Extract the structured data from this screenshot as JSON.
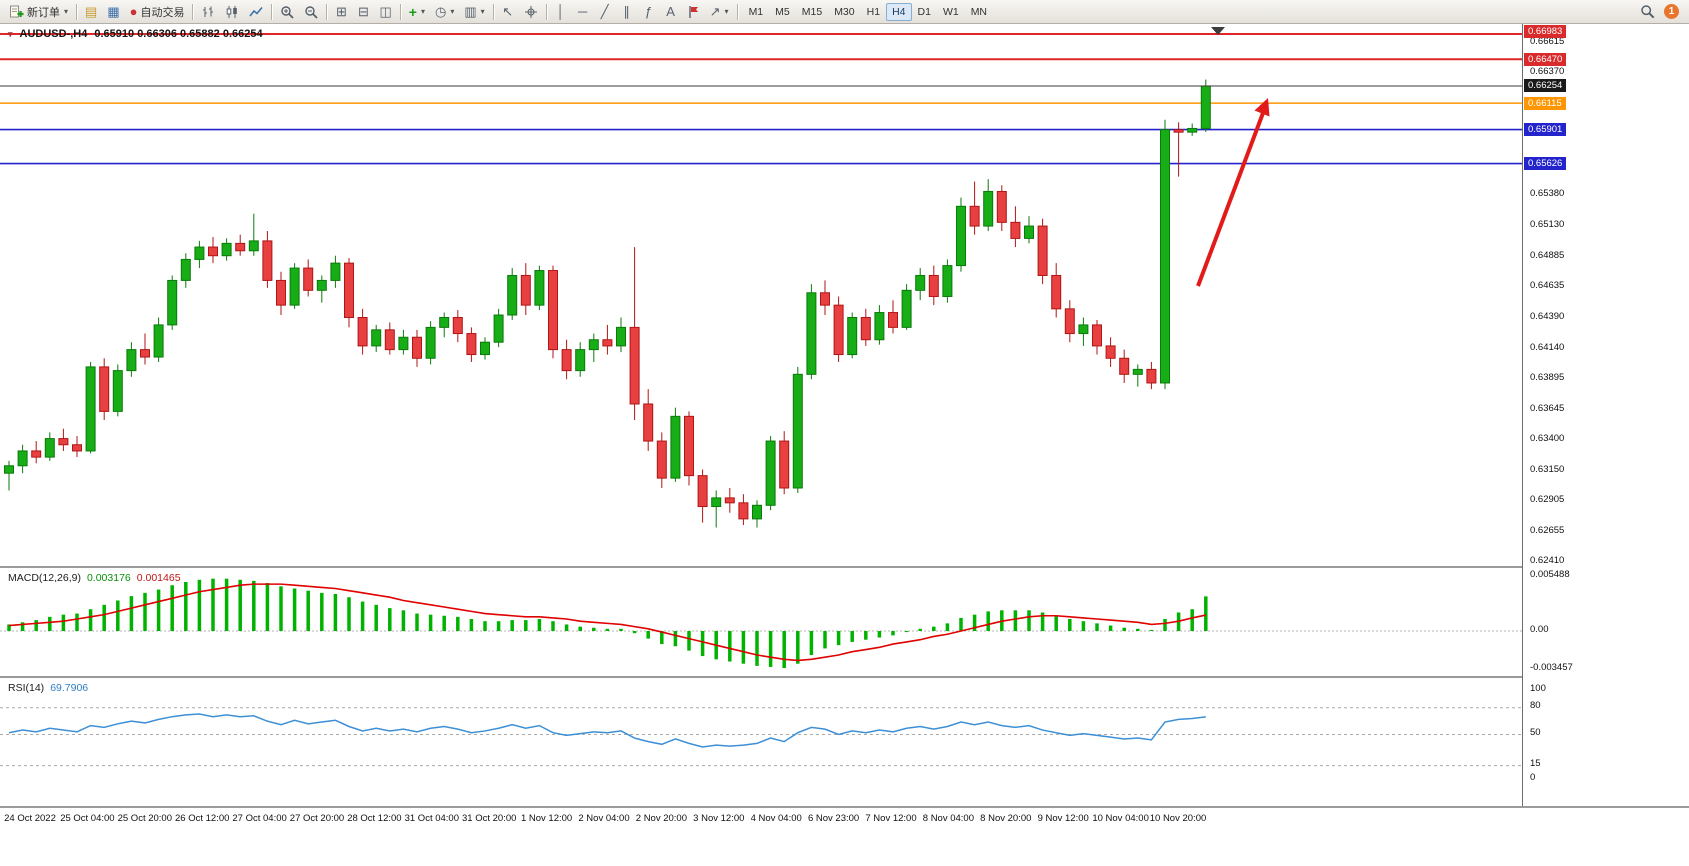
{
  "toolbar": {
    "new_order_label": "新订单",
    "autotrading_label": "自动交易",
    "timeframes": [
      "M1",
      "M5",
      "M15",
      "M30",
      "H1",
      "H4",
      "D1",
      "W1",
      "MN"
    ],
    "active_timeframe": "H4",
    "notification_count": "1"
  },
  "chart": {
    "symbol_tf": "AUDUSD-,H4",
    "ohlc": "0.65910 0.66306 0.65882 0.66254"
  },
  "macd": {
    "label": "MACD(12,26,9)",
    "value_main": "0.003176",
    "value_signal": "0.001465"
  },
  "rsi": {
    "label": "RSI(14)",
    "value": "69.7906"
  },
  "price_axis": {
    "main_labels": [
      "0.66615",
      "0.66370",
      "0.65380",
      "0.65130",
      "0.64885",
      "0.64635",
      "0.64390",
      "0.64140",
      "0.63895",
      "0.63645",
      "0.63400",
      "0.63150",
      "0.62905",
      "0.62655",
      "0.62410"
    ],
    "tags": [
      {
        "label": "0.66983",
        "price": 0.66983,
        "color": "#d92b2b"
      },
      {
        "label": "0.66470",
        "price": 0.6647,
        "color": "#d92b2b"
      },
      {
        "label": "0.66254",
        "price": 0.66254,
        "color": "#1a1a1a"
      },
      {
        "label": "0.66115",
        "price": 0.66115,
        "color": "#ff9500"
      },
      {
        "label": "0.65901",
        "price": 0.65901,
        "color": "#2424cc"
      },
      {
        "label": "0.65626",
        "price": 0.65626,
        "color": "#2424cc"
      }
    ]
  },
  "time_axis": [
    "24 Oct 2022",
    "25 Oct 04:00",
    "25 Oct 20:00",
    "26 Oct 12:00",
    "27 Oct 04:00",
    "27 Oct 20:00",
    "28 Oct 12:00",
    "31 Oct 04:00",
    "31 Oct 20:00",
    "1 Nov 12:00",
    "2 Nov 04:00",
    "2 Nov 20:00",
    "3 Nov 12:00",
    "4 Nov 04:00",
    "6 Nov 23:00",
    "7 Nov 12:00",
    "8 Nov 04:00",
    "8 Nov 20:00",
    "9 Nov 12:00",
    "10 Nov 04:00",
    "10 Nov 20:00"
  ],
  "chart_data": [
    {
      "type": "candlestick",
      "symbol": "AUDUSD-",
      "timeframe": "H4",
      "current_bar": {
        "open": 0.6591,
        "high": 0.66306,
        "low": 0.65882,
        "close": 0.66254
      },
      "ylim": [
        0.62393,
        0.66723
      ],
      "up_color": "#16ad16",
      "up_edge": "#0b7a0b",
      "down_color": "#e84040",
      "down_edge": "#b01515",
      "arrow_color": "#e11a1a",
      "hlines": [
        {
          "label": "0.66983",
          "price": 0.66983,
          "color": "#e02626",
          "width": 2
        },
        {
          "label": "0.66470",
          "price": 0.6647,
          "color": "#e02626",
          "width": 2
        },
        {
          "label": "0.66115",
          "price": 0.66115,
          "color": "#ff9500",
          "width": 1.6
        },
        {
          "label": "0.65901",
          "price": 0.65901,
          "color": "#2424cc",
          "width": 1.6
        },
        {
          "label": "0.65626",
          "price": 0.65626,
          "color": "#2424cc",
          "width": 1.6
        },
        {
          "label": "0.66254",
          "price": 0.66254,
          "color": "#3a3a3a",
          "width": 1,
          "on_top": true
        }
      ],
      "candles": [
        [
          0.6312,
          0.6322,
          0.6298,
          0.6318
        ],
        [
          0.6318,
          0.6335,
          0.6312,
          0.633
        ],
        [
          0.633,
          0.6338,
          0.632,
          0.6325
        ],
        [
          0.6325,
          0.6345,
          0.6322,
          0.634
        ],
        [
          0.634,
          0.6348,
          0.633,
          0.6335
        ],
        [
          0.6335,
          0.6342,
          0.6325,
          0.633
        ],
        [
          0.633,
          0.6402,
          0.6328,
          0.6398
        ],
        [
          0.6398,
          0.6405,
          0.6355,
          0.6362
        ],
        [
          0.6362,
          0.64,
          0.6358,
          0.6395
        ],
        [
          0.6395,
          0.6418,
          0.639,
          0.6412
        ],
        [
          0.6412,
          0.6425,
          0.64,
          0.6406
        ],
        [
          0.6406,
          0.6438,
          0.6402,
          0.6432
        ],
        [
          0.6432,
          0.6472,
          0.6428,
          0.6468
        ],
        [
          0.6468,
          0.649,
          0.6462,
          0.6485
        ],
        [
          0.6485,
          0.65,
          0.6478,
          0.6495
        ],
        [
          0.6495,
          0.6503,
          0.6482,
          0.6488
        ],
        [
          0.6488,
          0.6502,
          0.6484,
          0.6498
        ],
        [
          0.6498,
          0.6505,
          0.6488,
          0.6492
        ],
        [
          0.6492,
          0.6522,
          0.6488,
          0.65
        ],
        [
          0.65,
          0.6508,
          0.6462,
          0.6468
        ],
        [
          0.6468,
          0.6475,
          0.644,
          0.6448
        ],
        [
          0.6448,
          0.6482,
          0.6445,
          0.6478
        ],
        [
          0.6478,
          0.6485,
          0.6455,
          0.646
        ],
        [
          0.646,
          0.6472,
          0.645,
          0.6468
        ],
        [
          0.6468,
          0.6488,
          0.6462,
          0.6482
        ],
        [
          0.6482,
          0.6486,
          0.643,
          0.6438
        ],
        [
          0.6438,
          0.6445,
          0.6408,
          0.6415
        ],
        [
          0.6415,
          0.6432,
          0.641,
          0.6428
        ],
        [
          0.6428,
          0.6434,
          0.6408,
          0.6412
        ],
        [
          0.6412,
          0.6428,
          0.6408,
          0.6422
        ],
        [
          0.6422,
          0.6428,
          0.6398,
          0.6405
        ],
        [
          0.6405,
          0.6435,
          0.64,
          0.643
        ],
        [
          0.643,
          0.6442,
          0.6422,
          0.6438
        ],
        [
          0.6438,
          0.6444,
          0.6418,
          0.6425
        ],
        [
          0.6425,
          0.643,
          0.6402,
          0.6408
        ],
        [
          0.6408,
          0.6422,
          0.6404,
          0.6418
        ],
        [
          0.6418,
          0.6445,
          0.6414,
          0.644
        ],
        [
          0.644,
          0.6478,
          0.6436,
          0.6472
        ],
        [
          0.6472,
          0.6482,
          0.644,
          0.6448
        ],
        [
          0.6448,
          0.648,
          0.6444,
          0.6476
        ],
        [
          0.6476,
          0.648,
          0.6405,
          0.6412
        ],
        [
          0.6412,
          0.642,
          0.6388,
          0.6395
        ],
        [
          0.6395,
          0.6418,
          0.639,
          0.6412
        ],
        [
          0.6412,
          0.6425,
          0.6402,
          0.642
        ],
        [
          0.642,
          0.6432,
          0.6408,
          0.6415
        ],
        [
          0.6415,
          0.6438,
          0.641,
          0.643
        ],
        [
          0.643,
          0.6495,
          0.6355,
          0.6368
        ],
        [
          0.6368,
          0.638,
          0.633,
          0.6338
        ],
        [
          0.6338,
          0.6345,
          0.63,
          0.6308
        ],
        [
          0.6308,
          0.6365,
          0.6305,
          0.6358
        ],
        [
          0.6358,
          0.6362,
          0.6302,
          0.631
        ],
        [
          0.631,
          0.6315,
          0.6272,
          0.6285
        ],
        [
          0.6285,
          0.6298,
          0.6268,
          0.6292
        ],
        [
          0.6292,
          0.63,
          0.628,
          0.6288
        ],
        [
          0.6288,
          0.6295,
          0.627,
          0.6275
        ],
        [
          0.6275,
          0.629,
          0.6268,
          0.6286
        ],
        [
          0.6286,
          0.6342,
          0.6282,
          0.6338
        ],
        [
          0.6338,
          0.6346,
          0.6295,
          0.63
        ],
        [
          0.63,
          0.6398,
          0.6296,
          0.6392
        ],
        [
          0.6392,
          0.6465,
          0.6388,
          0.6458
        ],
        [
          0.6458,
          0.6468,
          0.644,
          0.6448
        ],
        [
          0.6448,
          0.6455,
          0.6402,
          0.6408
        ],
        [
          0.6408,
          0.6442,
          0.6405,
          0.6438
        ],
        [
          0.6438,
          0.6445,
          0.6415,
          0.642
        ],
        [
          0.642,
          0.6448,
          0.6416,
          0.6442
        ],
        [
          0.6442,
          0.6452,
          0.6425,
          0.643
        ],
        [
          0.643,
          0.6465,
          0.6428,
          0.646
        ],
        [
          0.646,
          0.6478,
          0.6452,
          0.6472
        ],
        [
          0.6472,
          0.648,
          0.6448,
          0.6455
        ],
        [
          0.6455,
          0.6485,
          0.645,
          0.648
        ],
        [
          0.648,
          0.6535,
          0.6475,
          0.6528
        ],
        [
          0.6528,
          0.6548,
          0.6505,
          0.6512
        ],
        [
          0.6512,
          0.655,
          0.6508,
          0.654
        ],
        [
          0.654,
          0.6545,
          0.6508,
          0.6515
        ],
        [
          0.6515,
          0.6528,
          0.6495,
          0.6502
        ],
        [
          0.6502,
          0.652,
          0.6498,
          0.6512
        ],
        [
          0.6512,
          0.6518,
          0.6465,
          0.6472
        ],
        [
          0.6472,
          0.6482,
          0.6438,
          0.6445
        ],
        [
          0.6445,
          0.6452,
          0.6418,
          0.6425
        ],
        [
          0.6425,
          0.6438,
          0.6415,
          0.6432
        ],
        [
          0.6432,
          0.6436,
          0.6408,
          0.6415
        ],
        [
          0.6415,
          0.6422,
          0.6398,
          0.6405
        ],
        [
          0.6405,
          0.6412,
          0.6385,
          0.6392
        ],
        [
          0.6392,
          0.64,
          0.6382,
          0.6396
        ],
        [
          0.6396,
          0.6402,
          0.638,
          0.6385
        ],
        [
          0.6385,
          0.6598,
          0.638,
          0.659
        ],
        [
          0.659,
          0.6596,
          0.6552,
          0.6588
        ],
        [
          0.6588,
          0.6595,
          0.6585,
          0.6591
        ],
        [
          0.6591,
          0.66306,
          0.65882,
          0.66254
        ]
      ]
    },
    {
      "type": "bar",
      "name": "MACD(12,26,9)",
      "color": "#00b300",
      "signal_color": "#e00000",
      "axis_labels": [
        "0.005488",
        "0.00",
        "-0.003457"
      ],
      "values": [
        0.0006,
        0.0008,
        0.001,
        0.0013,
        0.0015,
        0.0016,
        0.002,
        0.0024,
        0.0028,
        0.0032,
        0.0035,
        0.0038,
        0.0042,
        0.0045,
        0.0047,
        0.0048,
        0.0048,
        0.0047,
        0.0046,
        0.0044,
        0.0041,
        0.0039,
        0.0037,
        0.0035,
        0.0034,
        0.0031,
        0.0027,
        0.0024,
        0.0021,
        0.0019,
        0.0016,
        0.0015,
        0.0014,
        0.0013,
        0.0011,
        0.0009,
        0.0009,
        0.001,
        0.001,
        0.0011,
        0.0009,
        0.0006,
        0.0004,
        0.0003,
        0.0002,
        0.0002,
        -0.0002,
        -0.0007,
        -0.0012,
        -0.0014,
        -0.0018,
        -0.0023,
        -0.0026,
        -0.0028,
        -0.003,
        -0.0032,
        -0.0033,
        -0.0034,
        -0.003,
        -0.0022,
        -0.0016,
        -0.0013,
        -0.001,
        -0.0008,
        -0.0006,
        -0.0004,
        -0.0001,
        0.0002,
        0.0004,
        0.0007,
        0.0012,
        0.0015,
        0.0018,
        0.0019,
        0.0019,
        0.0019,
        0.0017,
        0.0014,
        0.0011,
        0.0009,
        0.0007,
        0.0005,
        0.0003,
        0.0002,
        0.0001,
        0.0011,
        0.0017,
        0.002,
        0.003176
      ],
      "signal": [
        0.0005,
        0.0006,
        0.0007,
        0.0008,
        0.0009,
        0.0011,
        0.0013,
        0.0015,
        0.0018,
        0.0021,
        0.0024,
        0.0027,
        0.003,
        0.0033,
        0.0036,
        0.0038,
        0.004,
        0.0042,
        0.0043,
        0.0043,
        0.0043,
        0.0042,
        0.0041,
        0.004,
        0.0039,
        0.0037,
        0.0035,
        0.0033,
        0.0031,
        0.0028,
        0.0026,
        0.0024,
        0.0022,
        0.002,
        0.0018,
        0.0016,
        0.0015,
        0.0014,
        0.0013,
        0.0013,
        0.0012,
        0.0011,
        0.0009,
        0.0008,
        0.0007,
        0.0006,
        0.0004,
        0.0002,
        -0.0001,
        -0.0004,
        -0.0007,
        -0.001,
        -0.0013,
        -0.0016,
        -0.0019,
        -0.0022,
        -0.0024,
        -0.0026,
        -0.0027,
        -0.0026,
        -0.0024,
        -0.0022,
        -0.0019,
        -0.0017,
        -0.0015,
        -0.0012,
        -0.001,
        -0.0008,
        -0.0005,
        -0.0003,
        0.0,
        0.0003,
        0.0006,
        0.0009,
        0.0011,
        0.0013,
        0.0014,
        0.0014,
        0.0013,
        0.0012,
        0.0011,
        0.001,
        0.0009,
        0.0008,
        0.0006,
        0.0007,
        0.0009,
        0.0012,
        0.001465
      ]
    },
    {
      "type": "line",
      "name": "RSI(14)",
      "color": "#3d8fd6",
      "ylim": [
        0,
        100
      ],
      "levels": [
        80,
        50,
        15
      ],
      "axis_labels": [
        "100",
        "80",
        "50",
        "15",
        "0"
      ],
      "values": [
        52,
        55,
        53,
        57,
        55,
        53,
        60,
        58,
        62,
        65,
        63,
        67,
        70,
        72,
        73,
        70,
        72,
        70,
        71,
        65,
        61,
        66,
        62,
        64,
        66,
        59,
        54,
        57,
        54,
        56,
        53,
        57,
        59,
        56,
        52,
        54,
        57,
        61,
        57,
        60,
        52,
        49,
        51,
        53,
        52,
        54,
        46,
        42,
        39,
        45,
        40,
        36,
        38,
        37,
        38,
        40,
        46,
        42,
        52,
        58,
        56,
        50,
        54,
        52,
        55,
        53,
        57,
        59,
        56,
        59,
        64,
        61,
        64,
        60,
        58,
        60,
        55,
        52,
        49,
        51,
        49,
        47,
        45,
        46,
        44,
        64,
        67,
        68,
        69.79
      ]
    }
  ]
}
